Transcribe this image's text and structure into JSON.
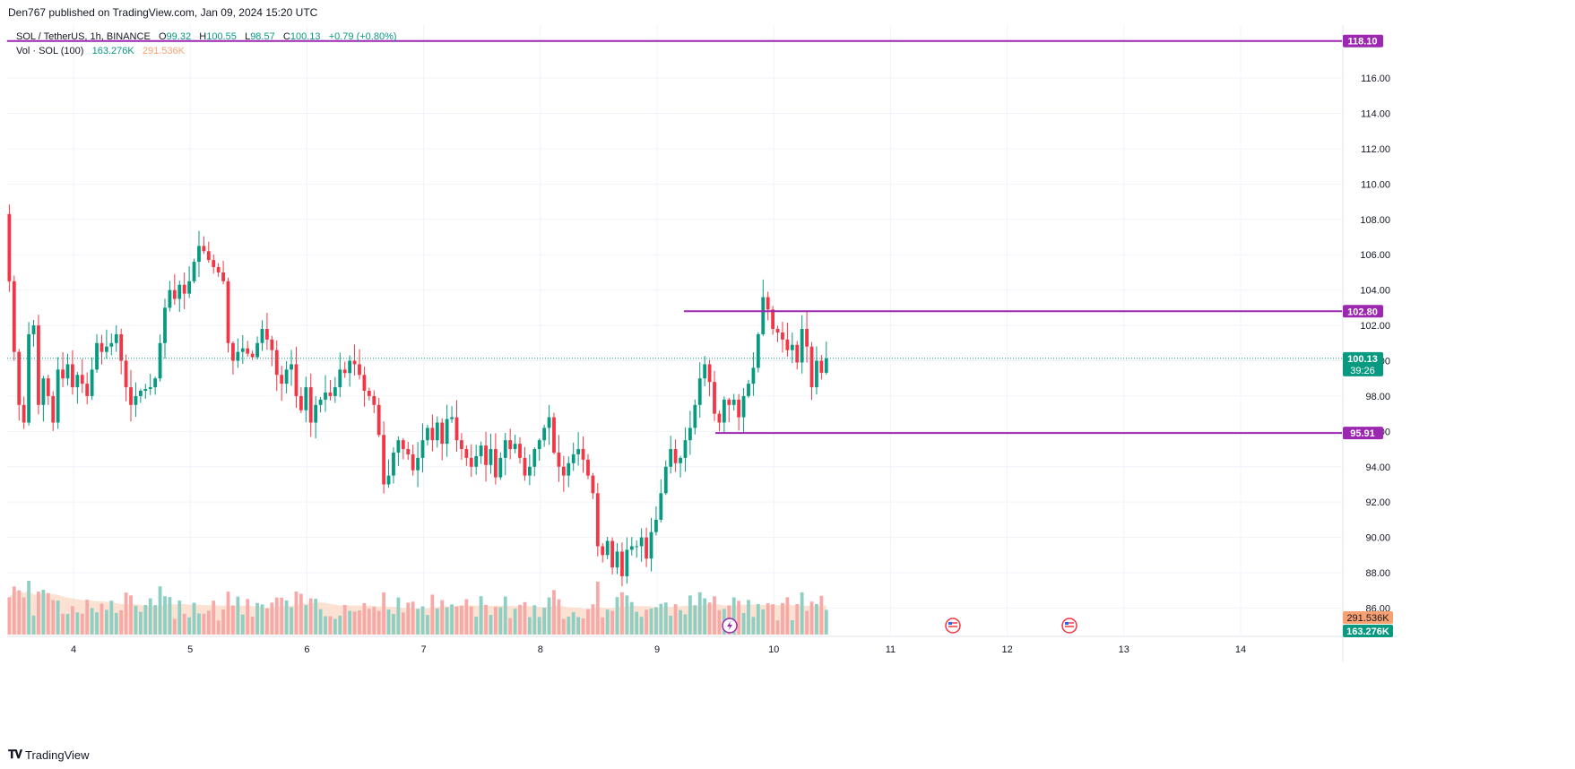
{
  "header": {
    "published": "Den767 published on TradingView.com, Jan 09, 2024 15:20 UTC"
  },
  "legend": {
    "symbol": "SOL / TetherUS, 1h, BINANCE",
    "o_label": "O",
    "o_value": "99.32",
    "h_label": "H",
    "h_value": "100.55",
    "l_label": "L",
    "l_value": "98.57",
    "c_label": "C",
    "c_value": "100.13",
    "change": "+0.79 (+0.80%)",
    "vol_label": "Vol · SOL (100)",
    "vol_value": "163.276K",
    "vol_ma": "291.536K"
  },
  "footer": {
    "brand": "TradingView"
  },
  "colors": {
    "up": "#089981",
    "down": "#f23645",
    "level": "#9c27b0",
    "vol_up": "#8ecfc4",
    "vol_down": "#f7a9a7",
    "vol_ma": "#f7a172"
  },
  "chart_data": {
    "type": "candlestick",
    "ylim": [
      84.5,
      119.0
    ],
    "yticks": [
      "86.00",
      "88.00",
      "90.00",
      "92.00",
      "94.00",
      "96.00",
      "98.00",
      "100.00",
      "102.00",
      "104.00",
      "106.00",
      "108.00",
      "110.00",
      "112.00",
      "114.00",
      "116.00"
    ],
    "xlabels": [
      "4",
      "5",
      "6",
      "7",
      "8",
      "9",
      "10",
      "11",
      "12",
      "13",
      "14"
    ],
    "x_range_days": [
      3.43,
      15.0
    ],
    "price_labels": {
      "level_high": "118.10",
      "level_upper": "102.80",
      "level_lower": "95.91",
      "last": "100.13",
      "countdown": "39:26",
      "vol_ma": "291.536K",
      "vol_last": "163.276K"
    },
    "levels": [
      {
        "name": "level-118",
        "value": 118.1,
        "from_day": 3.43
      },
      {
        "name": "level-102",
        "value": 102.8,
        "from_day": 9.23
      },
      {
        "name": "level-95",
        "value": 95.91,
        "from_day": 9.5
      }
    ],
    "last_price": 100.13,
    "candle_interval_hours": 1,
    "candle_start_day": 3.45,
    "closes": [
      104.5,
      100.5,
      97.5,
      96.5,
      101.5,
      102,
      97.5,
      99,
      98,
      96.5,
      99.5,
      99,
      99.8,
      98.5,
      99.2,
      98.7,
      98,
      99.5,
      101,
      100.5,
      100.8,
      101,
      101.5,
      100,
      98.5,
      97.5,
      98,
      98.3,
      98.4,
      98.5,
      99,
      101,
      103,
      104,
      103.5,
      104.3,
      103.8,
      104.5,
      105.6,
      106.5,
      106.2,
      105.7,
      105.3,
      105,
      104.5,
      101,
      100,
      100.5,
      100.7,
      100.4,
      100.2,
      101,
      101.8,
      101.2,
      100.6,
      99.2,
      98.7,
      99.5,
      99.8,
      98,
      97.2,
      98.5,
      96.5,
      97.5,
      97.8,
      98.2,
      98,
      98.5,
      99.5,
      99.3,
      100,
      99.8,
      99.2,
      98.3,
      98,
      97.5,
      95.8,
      93,
      93.5,
      94.8,
      95.5,
      95,
      94.7,
      93.8,
      94.5,
      95.5,
      96.2,
      95.5,
      96.5,
      95.3,
      96.7,
      96.8,
      95.5,
      95,
      94.5,
      94,
      94.6,
      95.2,
      94.1,
      95,
      93.4,
      94.5,
      95.5,
      95,
      95.3,
      94.5,
      93.5,
      94,
      95,
      95.5,
      96.2,
      96.8,
      94.8,
      94,
      93.5,
      94.2,
      94.7,
      95,
      94.4,
      93.5,
      92.5,
      89.5,
      89,
      89.8,
      88.3,
      89.2,
      87.8,
      89.3,
      89.5,
      89.5,
      90,
      88.8,
      90.3,
      91,
      92.5,
      94,
      95,
      94.2,
      94.5,
      95.5,
      96.2,
      97.5,
      99,
      99.8,
      98.8,
      97,
      96.5,
      97.8,
      97.5,
      97.8,
      96.8,
      98,
      98.7,
      99.6,
      101.5,
      103.6,
      102.9,
      101.8,
      101.6,
      101.2,
      100.6,
      100.9,
      99.9,
      101.8,
      100.8,
      98.5,
      100,
      99.32,
      100.13
    ],
    "volume_note": "Volume histogram under price, MA(100) shaded area"
  }
}
